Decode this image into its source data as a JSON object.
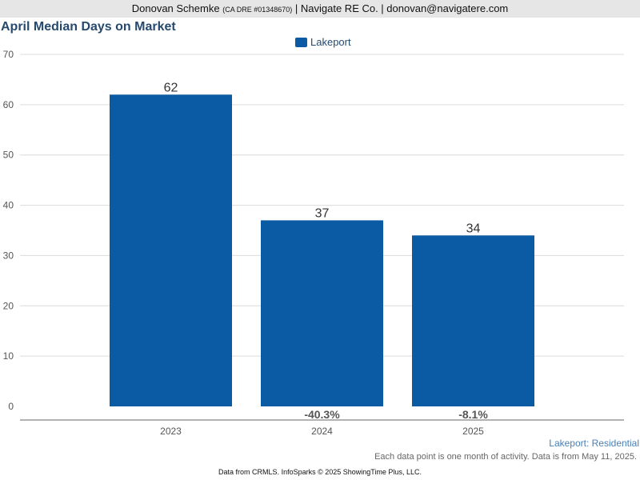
{
  "header": {
    "agent_name": "Donovan Schemke",
    "license": "(CA DRE #01348670)",
    "rest": "| Navigate RE Co. | donovan@navigatere.com"
  },
  "footer": {
    "area_label": "Lakeport: Residential",
    "note": "Each data point is one month of activity. Data is from May 11, 2025.",
    "source": "Data from CRMLS. InfoSparks © 2025 ShowingTime Plus, LLC."
  },
  "colors": {
    "bar": "#0a5aa4",
    "title": "#27496d"
  },
  "chart_data": {
    "type": "bar",
    "title": "April Median Days on Market",
    "xlabel": "",
    "ylabel": "",
    "categories": [
      "2023",
      "2024",
      "2025"
    ],
    "series": [
      {
        "name": "Lakeport",
        "values": [
          62,
          37,
          34
        ]
      }
    ],
    "changes": [
      "",
      "-40.3%",
      "-8.1%"
    ],
    "ylim": [
      0,
      70
    ],
    "yticks": [
      0,
      10,
      20,
      30,
      40,
      50,
      60,
      70
    ],
    "grid": true,
    "legend_position": "top-center"
  }
}
